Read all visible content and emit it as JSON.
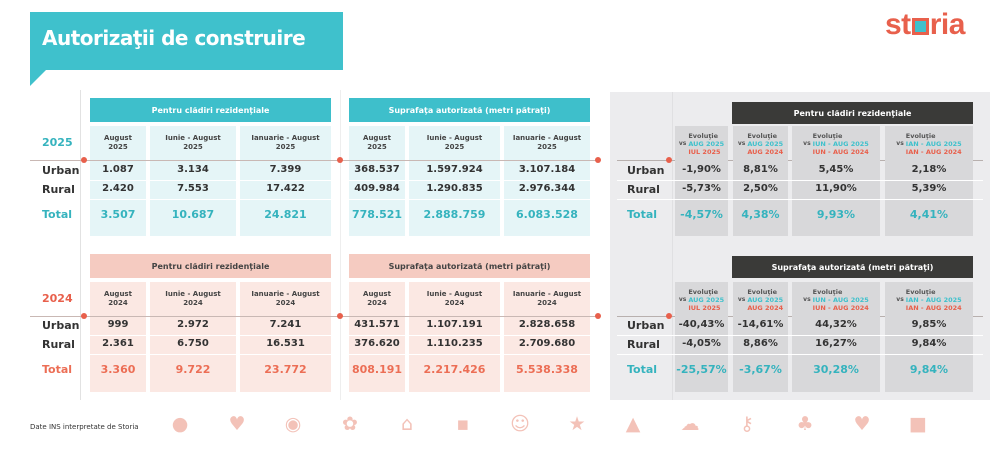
{
  "title": "Autorizaţii de construire",
  "logo": {
    "text_before": "st",
    "text_after": "ria",
    "full": "storia"
  },
  "colors": {
    "teal": "#3fc1cc",
    "coral": "#e8604c",
    "pink_header": "#f5cbc1",
    "dark_header": "#3a3a38",
    "panel": "#ececee"
  },
  "row_labels": [
    "Urban",
    "Rural",
    "Total"
  ],
  "sections": [
    {
      "year": "2025",
      "tables": [
        {
          "title": "Pentru clădiri rezidenţiale",
          "columns": [
            [
              "August",
              "2025"
            ],
            [
              "Iunie - August",
              "2025"
            ],
            [
              "Ianuarie - August",
              "2025"
            ]
          ],
          "rows": [
            [
              "1.087",
              "3.134",
              "7.399"
            ],
            [
              "2.420",
              "7.553",
              "17.422"
            ],
            [
              "3.507",
              "10.687",
              "24.821"
            ]
          ]
        },
        {
          "title": "Suprafaţa autorizată (metri pătraţi)",
          "columns": [
            [
              "August",
              "2025"
            ],
            [
              "Iunie - August",
              "2025"
            ],
            [
              "Ianuarie - August",
              "2025"
            ]
          ],
          "rows": [
            [
              "368.537",
              "1.597.924",
              "3.107.184"
            ],
            [
              "409.984",
              "1.290.835",
              "2.976.344"
            ],
            [
              "778.521",
              "2.888.759",
              "6.083.528"
            ]
          ]
        }
      ]
    },
    {
      "year": "2024",
      "tables": [
        {
          "title": "Pentru clădiri rezidenţiale",
          "columns": [
            [
              "August",
              "2024"
            ],
            [
              "Iunie - August",
              "2024"
            ],
            [
              "Ianuarie - August",
              "2024"
            ]
          ],
          "rows": [
            [
              "999",
              "2.972",
              "7.241"
            ],
            [
              "2.361",
              "6.750",
              "16.531"
            ],
            [
              "3.360",
              "9.722",
              "23.772"
            ]
          ]
        },
        {
          "title": "Suprafaţa autorizată (metri pătraţi)",
          "columns": [
            [
              "August",
              "2024"
            ],
            [
              "Iunie - August",
              "2024"
            ],
            [
              "Ianuarie - August",
              "2024"
            ]
          ],
          "rows": [
            [
              "431.571",
              "1.107.191",
              "2.828.658"
            ],
            [
              "376.620",
              "1.110.235",
              "2.709.680"
            ],
            [
              "808.191",
              "2.217.426",
              "5.538.338"
            ]
          ]
        }
      ]
    }
  ],
  "evolution": {
    "column_label": "Evoluţie",
    "vs": "vs",
    "columns": [
      [
        "AUG 2025",
        "IUL 2025"
      ],
      [
        "AUG 2025",
        "AUG 2024"
      ],
      [
        "IUN - AUG 2025",
        "IUN - AUG 2024"
      ],
      [
        "IAN - AUG 2025",
        "IAN - AUG 2024"
      ]
    ],
    "tables": [
      {
        "title": "Pentru clădiri rezidenţiale",
        "rows": [
          [
            "-1,90%",
            "8,81%",
            "5,45%",
            "2,18%"
          ],
          [
            "-5,73%",
            "2,50%",
            "11,90%",
            "5,39%"
          ],
          [
            "-4,57%",
            "4,38%",
            "9,93%",
            "4,41%"
          ]
        ]
      },
      {
        "title": "Suprafaţa autorizată (metri pătraţi)",
        "rows": [
          [
            "-40,43%",
            "-14,61%",
            "44,32%",
            "9,85%"
          ],
          [
            "-4,05%",
            "8,86%",
            "16,27%",
            "9,84%"
          ],
          [
            "-25,57%",
            "-3,67%",
            "30,28%",
            "9,84%"
          ]
        ]
      }
    ]
  },
  "footer": {
    "source": "Date INS interpretate de Storia",
    "icons": [
      "balloon-icon",
      "heart-icon",
      "eye-icon",
      "flower-icon",
      "house-icon",
      "speech-bubble-icon",
      "smiley-icon",
      "star-icon",
      "thumbs-up-icon",
      "cloud-icon",
      "key-icon",
      "tree-icon",
      "heart-icon",
      "briefcase-icon"
    ]
  }
}
